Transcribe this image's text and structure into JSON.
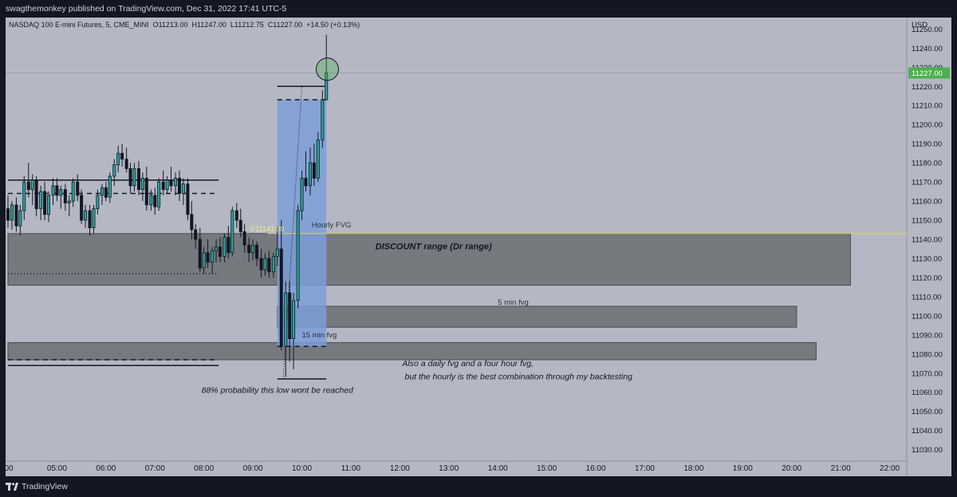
{
  "header": {
    "publisher_line": "swagthemonkey published on TradingView.com, Dec 31, 2022 17:41 UTC-5"
  },
  "footer": {
    "brand": "TradingView"
  },
  "colors": {
    "background": "#b5b8c4",
    "up_candle": "#26a69a",
    "down_candle": "#131722",
    "accent_green": "#4caf50",
    "zone_gray": "#6b6d72",
    "blue_box": "#7d9ed8",
    "eq_line": "#e3d65a"
  },
  "chart_data": {
    "type": "candlestick",
    "legend": {
      "symbol": "NASDAQ 100 E-mini Futures, 5, CME_MINI",
      "open_label": "O",
      "open": "11213.00",
      "high_label": "H",
      "high": "11247.00",
      "low_label": "L",
      "low": "11212.75",
      "close_label": "C",
      "close": "11227.00",
      "change": "+14.50 (+0.13%)"
    },
    "currency": "USD",
    "last_price_label": "11227.00",
    "last_price": 11227,
    "y_range": [
      11024,
      11256
    ],
    "y_ticks": [
      11030,
      11040,
      11050,
      11060,
      11070,
      11080,
      11090,
      11100,
      11110,
      11120,
      11130,
      11140,
      11150,
      11160,
      11170,
      11180,
      11190,
      11200,
      11210,
      11220,
      11230,
      11240,
      11250
    ],
    "y_tick_labels": [
      "11030.00",
      "11040.00",
      "11050.00",
      "11060.00",
      "11070.00",
      "11080.00",
      "11090.00",
      "11100.00",
      "11110.00",
      "11120.00",
      "11130.00",
      "11140.00",
      "11150.00",
      "11160.00",
      "11170.00",
      "11180.00",
      "11190.00",
      "11200.00",
      "11210.00",
      "11220.00",
      "11230.00",
      "11240.00",
      "11250.00"
    ],
    "x_range_hours": [
      4.0,
      22.3
    ],
    "x_tick_labels": [
      "00",
      "05:00",
      "06:00",
      "07:00",
      "08:00",
      "09:00",
      "10:00",
      "11:00",
      "12:00",
      "13:00",
      "14:00",
      "15:00",
      "16:00",
      "17:00",
      "18:00",
      "19:00",
      "20:00",
      "21:00",
      "22:00"
    ],
    "x_tick_hours": [
      4,
      5,
      6,
      7,
      8,
      9,
      10,
      11,
      12,
      13,
      14,
      15,
      16,
      17,
      18,
      19,
      20,
      21,
      22
    ],
    "candles": [
      {
        "t": 4.0,
        "o": 11156,
        "h": 11163,
        "l": 11146,
        "c": 11150
      },
      {
        "t": 4.08,
        "o": 11150,
        "h": 11160,
        "l": 11145,
        "c": 11158
      },
      {
        "t": 4.17,
        "o": 11158,
        "h": 11162,
        "l": 11144,
        "c": 11147
      },
      {
        "t": 4.25,
        "o": 11147,
        "h": 11158,
        "l": 11142,
        "c": 11155
      },
      {
        "t": 4.33,
        "o": 11155,
        "h": 11173,
        "l": 11150,
        "c": 11170
      },
      {
        "t": 4.42,
        "o": 11170,
        "h": 11180,
        "l": 11162,
        "c": 11166
      },
      {
        "t": 4.5,
        "o": 11166,
        "h": 11174,
        "l": 11158,
        "c": 11171
      },
      {
        "t": 4.58,
        "o": 11171,
        "h": 11173,
        "l": 11152,
        "c": 11156
      },
      {
        "t": 4.67,
        "o": 11156,
        "h": 11168,
        "l": 11150,
        "c": 11165
      },
      {
        "t": 4.75,
        "o": 11165,
        "h": 11170,
        "l": 11150,
        "c": 11153
      },
      {
        "t": 4.83,
        "o": 11153,
        "h": 11165,
        "l": 11149,
        "c": 11163
      },
      {
        "t": 4.92,
        "o": 11163,
        "h": 11172,
        "l": 11158,
        "c": 11168
      },
      {
        "t": 5.0,
        "o": 11168,
        "h": 11172,
        "l": 11160,
        "c": 11163
      },
      {
        "t": 5.08,
        "o": 11163,
        "h": 11168,
        "l": 11156,
        "c": 11166
      },
      {
        "t": 5.17,
        "o": 11166,
        "h": 11169,
        "l": 11155,
        "c": 11159
      },
      {
        "t": 5.25,
        "o": 11159,
        "h": 11163,
        "l": 11152,
        "c": 11160
      },
      {
        "t": 5.33,
        "o": 11160,
        "h": 11172,
        "l": 11157,
        "c": 11170
      },
      {
        "t": 5.42,
        "o": 11170,
        "h": 11174,
        "l": 11160,
        "c": 11163
      },
      {
        "t": 5.5,
        "o": 11163,
        "h": 11166,
        "l": 11148,
        "c": 11150
      },
      {
        "t": 5.58,
        "o": 11150,
        "h": 11158,
        "l": 11146,
        "c": 11155
      },
      {
        "t": 5.67,
        "o": 11155,
        "h": 11158,
        "l": 11142,
        "c": 11146
      },
      {
        "t": 5.75,
        "o": 11146,
        "h": 11158,
        "l": 11143,
        "c": 11156
      },
      {
        "t": 5.83,
        "o": 11156,
        "h": 11166,
        "l": 11153,
        "c": 11163
      },
      {
        "t": 5.92,
        "o": 11163,
        "h": 11169,
        "l": 11158,
        "c": 11167
      },
      {
        "t": 6.0,
        "o": 11167,
        "h": 11170,
        "l": 11160,
        "c": 11162
      },
      {
        "t": 6.08,
        "o": 11162,
        "h": 11175,
        "l": 11159,
        "c": 11173
      },
      {
        "t": 6.17,
        "o": 11173,
        "h": 11182,
        "l": 11168,
        "c": 11179
      },
      {
        "t": 6.25,
        "o": 11179,
        "h": 11189,
        "l": 11175,
        "c": 11185
      },
      {
        "t": 6.33,
        "o": 11185,
        "h": 11190,
        "l": 11178,
        "c": 11182
      },
      {
        "t": 6.42,
        "o": 11182,
        "h": 11188,
        "l": 11175,
        "c": 11177
      },
      {
        "t": 6.5,
        "o": 11177,
        "h": 11180,
        "l": 11164,
        "c": 11168
      },
      {
        "t": 6.58,
        "o": 11168,
        "h": 11180,
        "l": 11165,
        "c": 11177
      },
      {
        "t": 6.67,
        "o": 11177,
        "h": 11181,
        "l": 11163,
        "c": 11166
      },
      {
        "t": 6.75,
        "o": 11166,
        "h": 11175,
        "l": 11160,
        "c": 11172
      },
      {
        "t": 6.83,
        "o": 11172,
        "h": 11178,
        "l": 11155,
        "c": 11158
      },
      {
        "t": 6.92,
        "o": 11158,
        "h": 11166,
        "l": 11155,
        "c": 11163
      },
      {
        "t": 7.0,
        "o": 11163,
        "h": 11167,
        "l": 11153,
        "c": 11157
      },
      {
        "t": 7.08,
        "o": 11157,
        "h": 11172,
        "l": 11155,
        "c": 11170
      },
      {
        "t": 7.17,
        "o": 11170,
        "h": 11176,
        "l": 11163,
        "c": 11166
      },
      {
        "t": 7.25,
        "o": 11166,
        "h": 11173,
        "l": 11164,
        "c": 11171
      },
      {
        "t": 7.33,
        "o": 11171,
        "h": 11178,
        "l": 11165,
        "c": 11168
      },
      {
        "t": 7.42,
        "o": 11168,
        "h": 11175,
        "l": 11163,
        "c": 11172
      },
      {
        "t": 7.5,
        "o": 11172,
        "h": 11176,
        "l": 11160,
        "c": 11164
      },
      {
        "t": 7.58,
        "o": 11164,
        "h": 11172,
        "l": 11158,
        "c": 11169
      },
      {
        "t": 7.67,
        "o": 11169,
        "h": 11172,
        "l": 11150,
        "c": 11153
      },
      {
        "t": 7.75,
        "o": 11153,
        "h": 11160,
        "l": 11140,
        "c": 11145
      },
      {
        "t": 7.83,
        "o": 11145,
        "h": 11148,
        "l": 11135,
        "c": 11140
      },
      {
        "t": 7.92,
        "o": 11140,
        "h": 11146,
        "l": 11123,
        "c": 11125
      },
      {
        "t": 8.0,
        "o": 11125,
        "h": 11136,
        "l": 11122,
        "c": 11133
      },
      {
        "t": 8.08,
        "o": 11133,
        "h": 11140,
        "l": 11125,
        "c": 11128
      },
      {
        "t": 8.17,
        "o": 11128,
        "h": 11136,
        "l": 11122,
        "c": 11134
      },
      {
        "t": 8.25,
        "o": 11134,
        "h": 11140,
        "l": 11128,
        "c": 11136
      },
      {
        "t": 8.33,
        "o": 11136,
        "h": 11141,
        "l": 11128,
        "c": 11131
      },
      {
        "t": 8.42,
        "o": 11131,
        "h": 11143,
        "l": 11128,
        "c": 11141
      },
      {
        "t": 8.5,
        "o": 11141,
        "h": 11147,
        "l": 11130,
        "c": 11133
      },
      {
        "t": 8.58,
        "o": 11133,
        "h": 11157,
        "l": 11131,
        "c": 11155
      },
      {
        "t": 8.67,
        "o": 11155,
        "h": 11159,
        "l": 11146,
        "c": 11150
      },
      {
        "t": 8.75,
        "o": 11150,
        "h": 11156,
        "l": 11141,
        "c": 11144
      },
      {
        "t": 8.83,
        "o": 11144,
        "h": 11148,
        "l": 11133,
        "c": 11137
      },
      {
        "t": 8.92,
        "o": 11137,
        "h": 11141,
        "l": 11128,
        "c": 11133
      },
      {
        "t": 9.0,
        "o": 11133,
        "h": 11140,
        "l": 11129,
        "c": 11137
      },
      {
        "t": 9.08,
        "o": 11137,
        "h": 11139,
        "l": 11126,
        "c": 11130
      },
      {
        "t": 9.17,
        "o": 11130,
        "h": 11135,
        "l": 11120,
        "c": 11124
      },
      {
        "t": 9.25,
        "o": 11124,
        "h": 11133,
        "l": 11121,
        "c": 11130
      },
      {
        "t": 9.33,
        "o": 11130,
        "h": 11134,
        "l": 11120,
        "c": 11123
      },
      {
        "t": 9.42,
        "o": 11123,
        "h": 11133,
        "l": 11120,
        "c": 11131
      },
      {
        "t": 9.5,
        "o": 11131,
        "h": 11147,
        "l": 11126,
        "c": 11135
      },
      {
        "t": 9.58,
        "o": 11135,
        "h": 11150,
        "l": 11082,
        "c": 11084
      },
      {
        "t": 9.67,
        "o": 11084,
        "h": 11118,
        "l": 11068,
        "c": 11112
      },
      {
        "t": 9.75,
        "o": 11112,
        "h": 11118,
        "l": 11076,
        "c": 11088
      },
      {
        "t": 9.83,
        "o": 11088,
        "h": 11112,
        "l": 11072,
        "c": 11108
      },
      {
        "t": 9.92,
        "o": 11108,
        "h": 11158,
        "l": 11104,
        "c": 11155
      },
      {
        "t": 10.0,
        "o": 11155,
        "h": 11176,
        "l": 11150,
        "c": 11172
      },
      {
        "t": 10.08,
        "o": 11172,
        "h": 11186,
        "l": 11165,
        "c": 11168
      },
      {
        "t": 10.17,
        "o": 11168,
        "h": 11188,
        "l": 11163,
        "c": 11180
      },
      {
        "t": 10.25,
        "o": 11180,
        "h": 11190,
        "l": 11168,
        "c": 11172
      },
      {
        "t": 10.33,
        "o": 11172,
        "h": 11196,
        "l": 11170,
        "c": 11192
      },
      {
        "t": 10.42,
        "o": 11192,
        "h": 11218,
        "l": 11188,
        "c": 11213
      },
      {
        "t": 10.5,
        "o": 11213,
        "h": 11247,
        "l": 11212.75,
        "c": 11227
      }
    ],
    "annotations": {
      "hourly_fvg_label": "Hourly FVG",
      "eq_price_label": "11143.00",
      "eq_price": 11143,
      "discount_label": "DISCOUNT range (Dr range)",
      "five_min_label": "5 min fvg",
      "fifteen_min_label": "15 min fvg",
      "daily_note_line1": "Also a daily fvg and a four hour fvg,",
      "daily_note_line2": "but the hourly is the best combination through my backtesting",
      "probability_note": "88% probability this low wont be reached",
      "zero_label": "0"
    },
    "zones": [
      {
        "name": "discount-zone",
        "t1": 4.0,
        "t2": 21.2,
        "y_top": 11143,
        "y_bottom": 11116
      },
      {
        "name": "five-min-fvg-zone",
        "t1": 9.5,
        "t2": 20.1,
        "y_top": 11105,
        "y_bottom": 11094
      },
      {
        "name": "fifteen-min-fvg-zone",
        "t1": 4.0,
        "t2": 20.5,
        "y_top": 11086,
        "y_bottom": 11077
      }
    ],
    "long_position": {
      "t1": 9.5,
      "t2": 10.5,
      "entry": 11084,
      "target": 11213,
      "stop": 11066
    },
    "levels": [
      {
        "name": "range-high-line",
        "t1": 4.0,
        "t2": 8.3,
        "y": 11171,
        "style": "solid"
      },
      {
        "name": "range-mid-line",
        "t1": 4.0,
        "t2": 8.3,
        "y": 11164,
        "style": "dashed"
      },
      {
        "name": "range-low-dotted-line",
        "t1": 4.0,
        "t2": 8.3,
        "y": 11122,
        "style": "dotted"
      },
      {
        "name": "lower-dashed-line",
        "t1": 4.0,
        "t2": 8.3,
        "y": 11077,
        "style": "dashed"
      },
      {
        "name": "lower-solid-line",
        "t1": 4.0,
        "t2": 8.3,
        "y": 11074,
        "style": "solid"
      },
      {
        "name": "target-top-line",
        "t1": 9.5,
        "t2": 10.5,
        "y": 11220,
        "style": "solid"
      },
      {
        "name": "target-dashed-line",
        "t1": 9.5,
        "t2": 10.5,
        "y": 11213,
        "style": "dashed"
      },
      {
        "name": "entry-dashed-line",
        "t1": 9.5,
        "t2": 10.5,
        "y": 11084,
        "style": "dashed"
      },
      {
        "name": "stop-solid-line",
        "t1": 9.5,
        "t2": 10.5,
        "y": 11067,
        "style": "solid"
      }
    ],
    "highlight_circle": {
      "t": 10.52,
      "y": 11229
    }
  }
}
